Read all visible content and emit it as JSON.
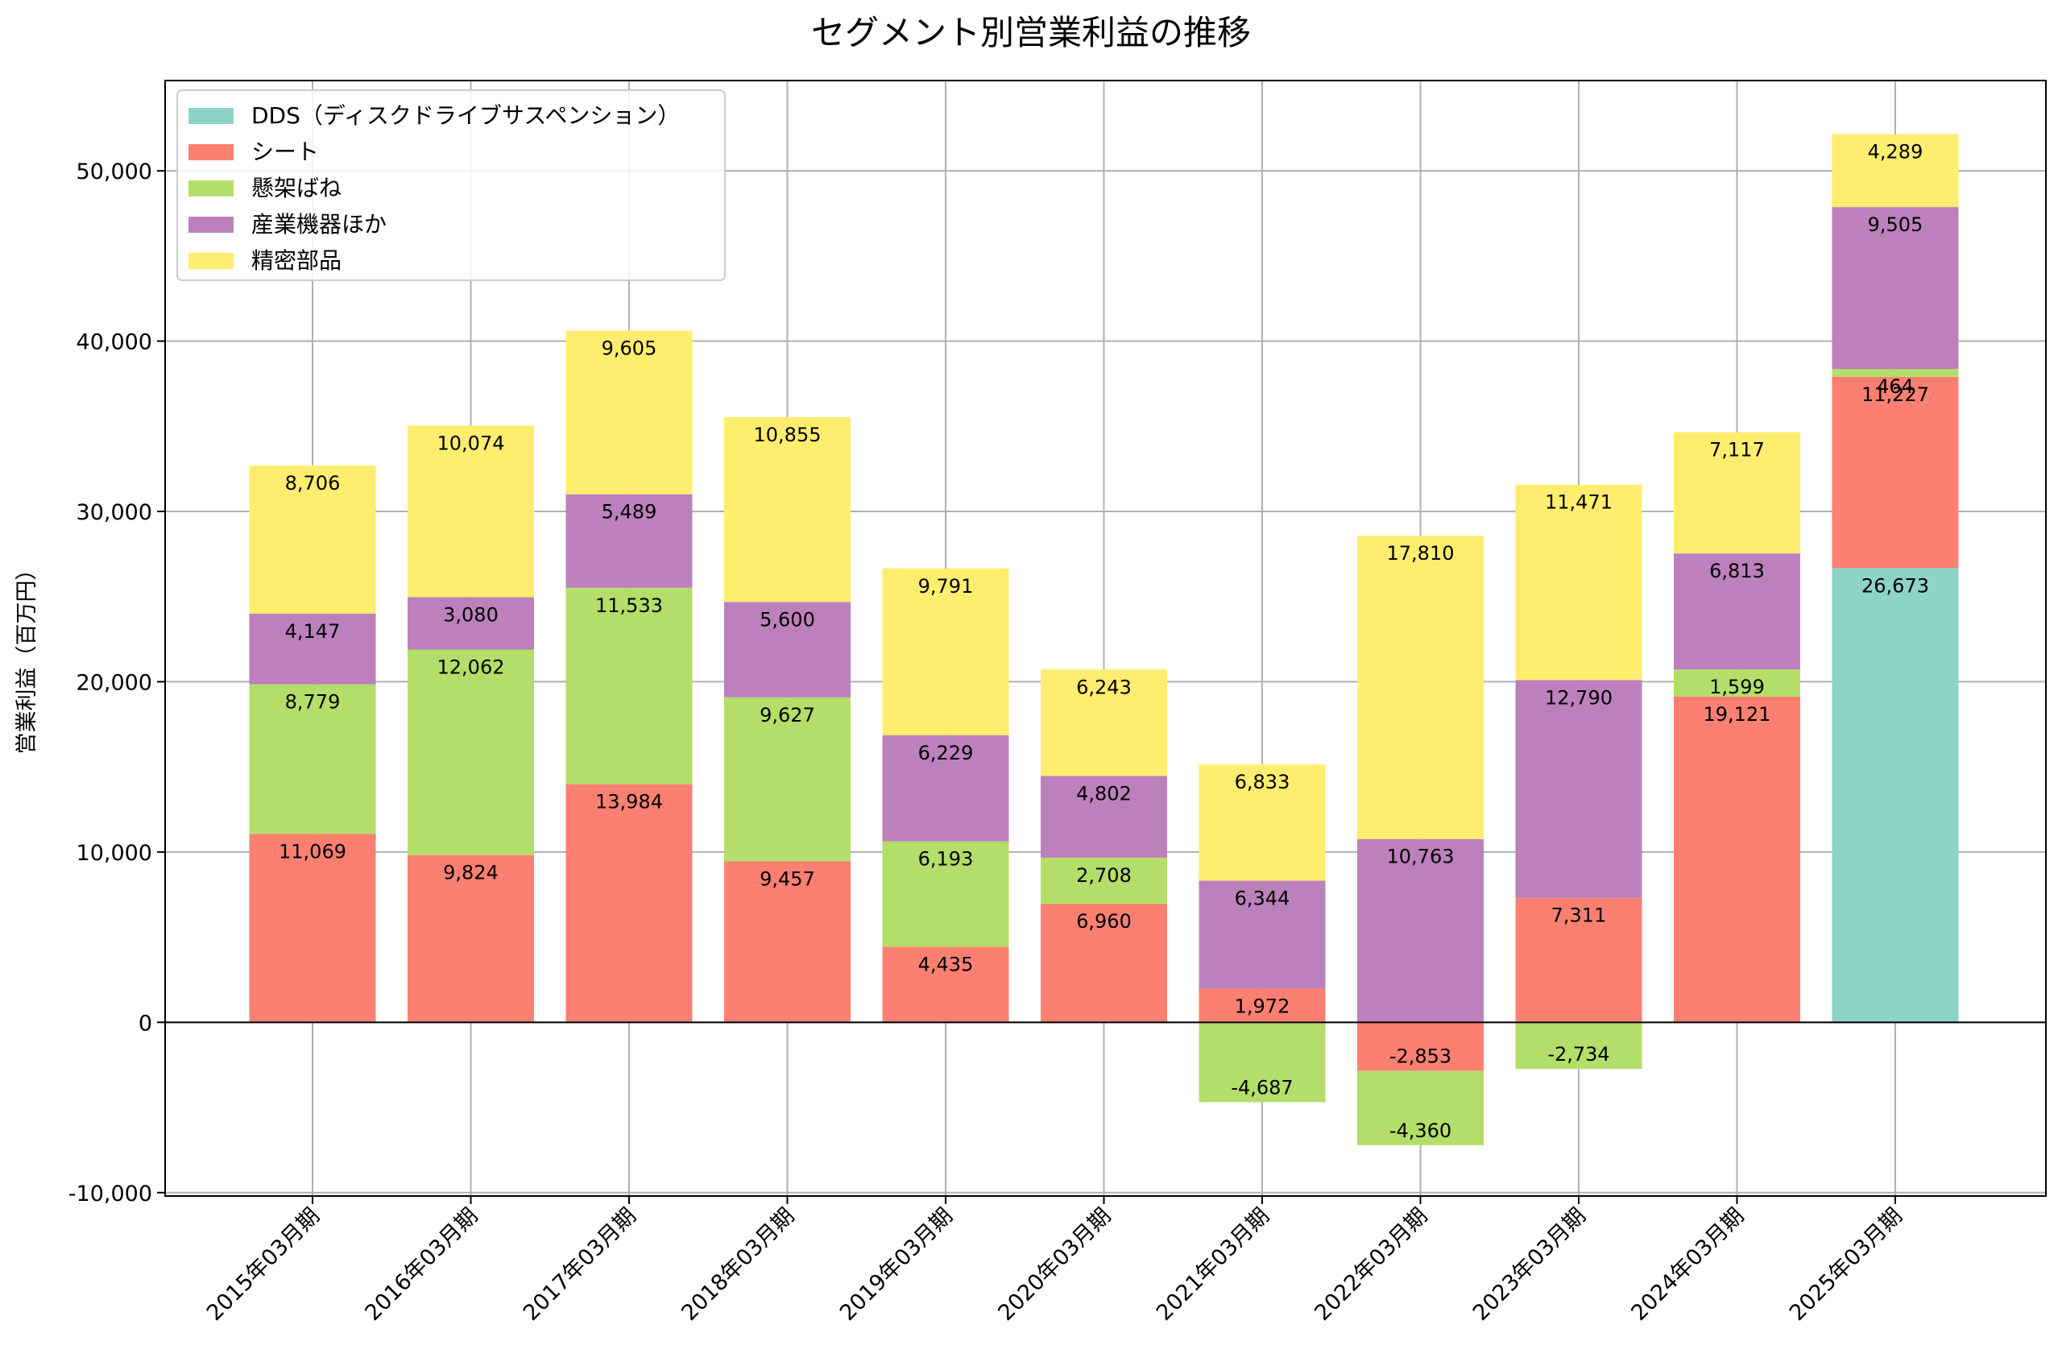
{
  "chart_data": {
    "type": "bar",
    "stacked": true,
    "title": "セグメント別営業利益の推移",
    "xlabel": "",
    "ylabel": "営業利益（百万円）",
    "ylim": [
      -10200,
      55300
    ],
    "yticks": [
      -10000,
      0,
      10000,
      20000,
      30000,
      40000,
      50000
    ],
    "ytick_labels": [
      "-10,000",
      "0",
      "10,000",
      "20,000",
      "30,000",
      "40,000",
      "50,000"
    ],
    "grid": true,
    "legend_position": "top-left",
    "categories": [
      "2015年03月期",
      "2016年03月期",
      "2017年03月期",
      "2018年03月期",
      "2019年03月期",
      "2020年03月期",
      "2021年03月期",
      "2022年03月期",
      "2023年03月期",
      "2024年03月期",
      "2025年03月期"
    ],
    "series": [
      {
        "name": "DDS（ディスクドライブサスペンション）",
        "color": "#8dd3c7",
        "values": [
          null,
          null,
          null,
          null,
          null,
          null,
          null,
          null,
          null,
          null,
          26673
        ],
        "labels": [
          "",
          "",
          "",
          "",
          "",
          "",
          "",
          "",
          "",
          "",
          "26,673"
        ]
      },
      {
        "name": "シート",
        "color": "#fb8072",
        "values": [
          11069,
          9824,
          13984,
          9457,
          4435,
          6960,
          1972,
          -2853,
          7311,
          19121,
          11227
        ],
        "labels": [
          "11,069",
          "9,824",
          "13,984",
          "9,457",
          "4,435",
          "6,960",
          "1,972",
          "-2,853",
          "7,311",
          "19,121",
          "11,227"
        ]
      },
      {
        "name": "懸架ばね",
        "color": "#b3de69",
        "values": [
          8779,
          12062,
          11533,
          9627,
          6193,
          2708,
          -4687,
          -4360,
          -2734,
          1599,
          464
        ],
        "labels": [
          "8,779",
          "12,062",
          "11,533",
          "9,627",
          "6,193",
          "2,708",
          "-4,687",
          "-4,360",
          "-2,734",
          "1,599",
          "464"
        ]
      },
      {
        "name": "産業機器ほか",
        "color": "#bc80bd",
        "values": [
          4147,
          3080,
          5489,
          5600,
          6229,
          4802,
          6344,
          10763,
          12790,
          6813,
          9505
        ],
        "labels": [
          "4,147",
          "3,080",
          "5,489",
          "5,600",
          "6,229",
          "4,802",
          "6,344",
          "10,763",
          "12,790",
          "6,813",
          "9,505"
        ]
      },
      {
        "name": "精密部品",
        "color": "#ffed6f",
        "values": [
          8706,
          10074,
          9605,
          10855,
          9791,
          6243,
          6833,
          17810,
          11471,
          7117,
          4289
        ],
        "labels": [
          "8,706",
          "10,074",
          "9,605",
          "10,855",
          "9,791",
          "6,243",
          "6,833",
          "17,810",
          "11,471",
          "7,117",
          "4,289"
        ]
      }
    ]
  }
}
